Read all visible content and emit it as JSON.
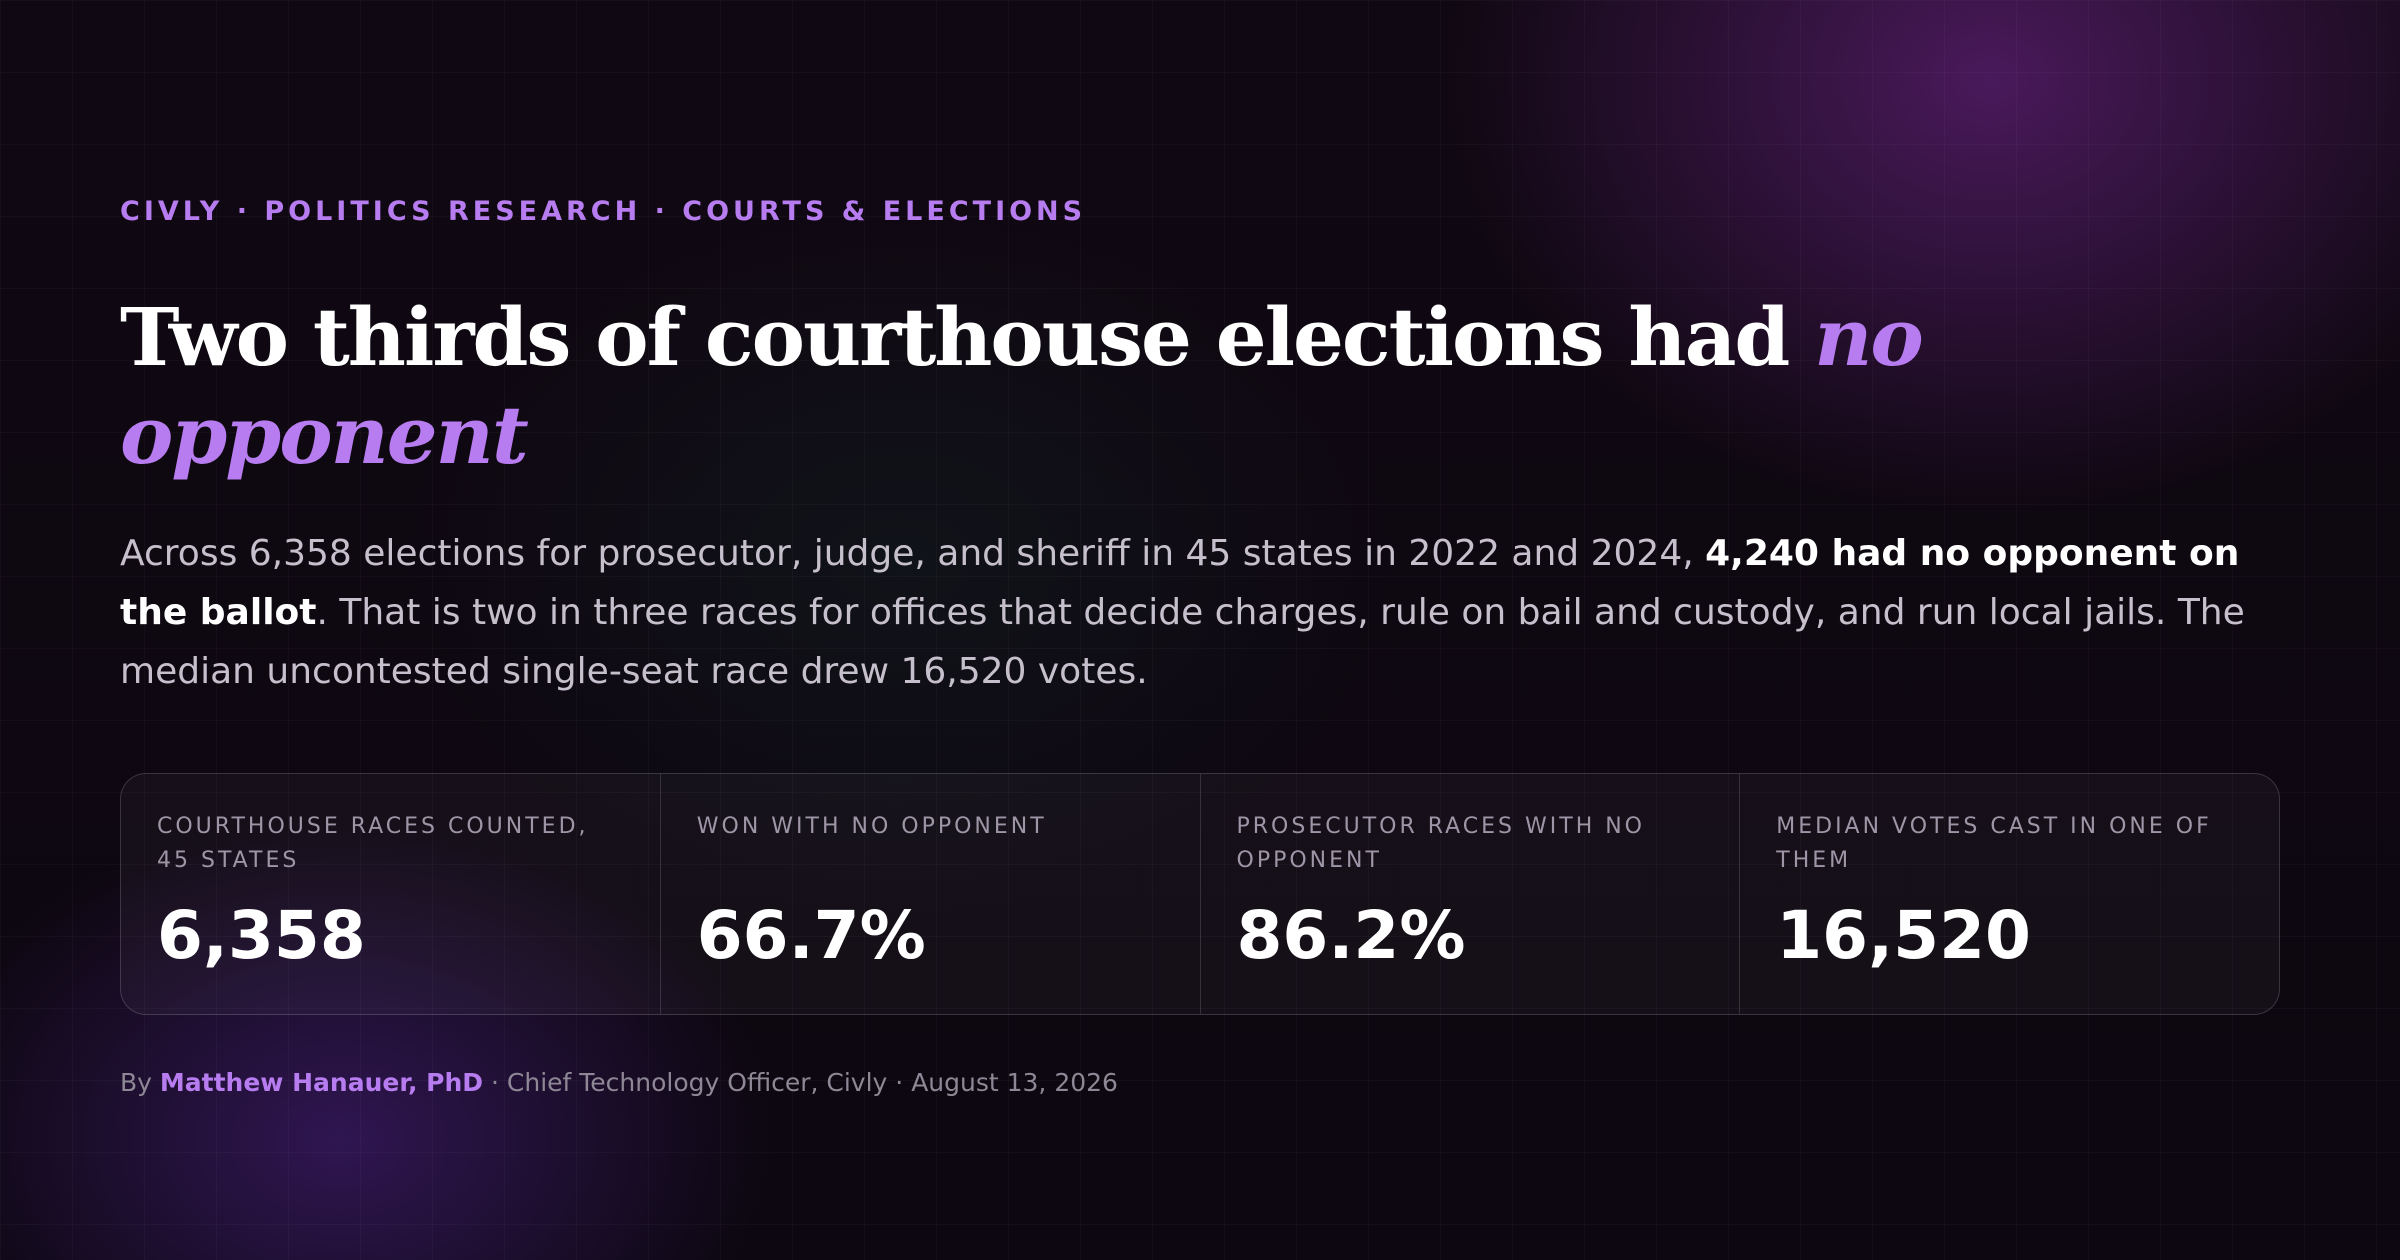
{
  "kicker": "CIVLY · POLITICS RESEARCH · COURTS & ELECTIONS",
  "headline": {
    "main": "Two thirds of courthouse elections had ",
    "accent": "no opponent"
  },
  "deck": {
    "part1": "Across 6,358 elections for prosecutor, judge, and sheriff in 45 states in 2022 and 2024, ",
    "bold": "4,240 had no opponent on the ballot",
    "part2": ". That is two in three races for offices that decide charges, rule on bail and custody, and run local jails. The median uncontested single-seat race drew 16,520 votes."
  },
  "stats": [
    {
      "label": "COURTHOUSE RACES COUNTED, 45 STATES",
      "value": "6,358"
    },
    {
      "label": "WON WITH NO OPPONENT",
      "value": "66.7%"
    },
    {
      "label": "PROSECUTOR RACES WITH NO OPPONENT",
      "value": "86.2%"
    },
    {
      "label": "MEDIAN VOTES CAST IN ONE OF THEM",
      "value": "16,520"
    }
  ],
  "byline": {
    "prefix": "By ",
    "author": "Matthew Hanauer, PhD",
    "role": " · Chief Technology Officer, Civly · August 13, 2026"
  },
  "colors": {
    "accent": "#b77df0",
    "background": "#0d0711"
  }
}
